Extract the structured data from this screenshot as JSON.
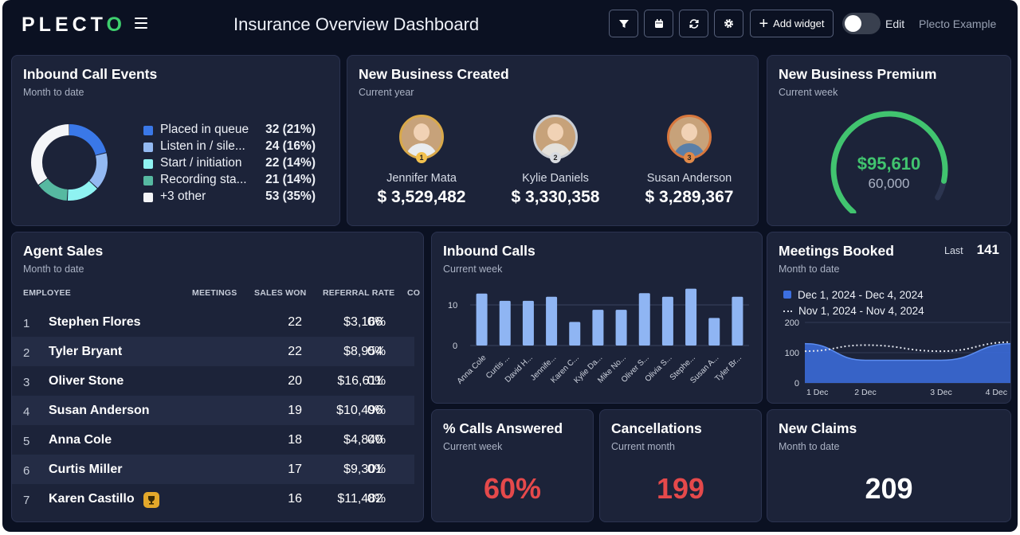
{
  "header": {
    "logo_main": "PLECT",
    "logo_accent": "O",
    "title": "Insurance Overview Dashboard",
    "add_widget_label": "Add widget",
    "edit_label": "Edit",
    "edit_mode": false,
    "account_label": "Plecto Example",
    "icons": [
      "filter-icon",
      "calendar-icon",
      "refresh-icon",
      "gear-icon",
      "plus-icon",
      "menu-icon"
    ]
  },
  "inbound_call_events": {
    "title": "Inbound Call Events",
    "subtitle": "Month to date",
    "legend": [
      {
        "label": "Placed in queue",
        "value": "32 (21%)",
        "pct": 21,
        "color": "#3a78e8"
      },
      {
        "label": "Listen in / sile...",
        "value": "24 (16%)",
        "pct": 16,
        "color": "#93b9f2"
      },
      {
        "label": "Start / initiation",
        "value": "22 (14%)",
        "pct": 14,
        "color": "#8ff3f2"
      },
      {
        "label": "Recording sta...",
        "value": "21 (14%)",
        "pct": 14,
        "color": "#56b9a1"
      },
      {
        "label": "+3 other",
        "value": "53 (35%)",
        "pct": 35,
        "color": "#f4f5f8"
      }
    ]
  },
  "new_business_created": {
    "title": "New Business Created",
    "subtitle": "Current year",
    "people": [
      {
        "rank": "1",
        "name": "Jennifer Mata",
        "amount": "$ 3,529,482",
        "ring": "#d9a94a",
        "shirt": "#e9ecef"
      },
      {
        "rank": "2",
        "name": "Kylie Daniels",
        "amount": "$ 3,330,358",
        "ring": "#c9cdd4",
        "shirt": "#e4e1db"
      },
      {
        "rank": "3",
        "name": "Susan Anderson",
        "amount": "$ 3,289,367",
        "ring": "#d8773d",
        "shirt": "#5a7fa8"
      }
    ]
  },
  "new_business_premium": {
    "title": "New Business Premium",
    "subtitle": "Current week",
    "value": "$95,610",
    "target": "60,000",
    "progress": 0.93,
    "color": "#41c46f"
  },
  "agent_sales": {
    "title": "Agent Sales",
    "subtitle": "Month to date",
    "columns": [
      "EMPLOYEE",
      "MEETINGS",
      "SALES WON",
      "REFERRAL RATE",
      "CO"
    ],
    "rows": [
      {
        "rank": "1",
        "name": "Stephen Flores",
        "meetings": "22",
        "sales": "$3,166",
        "referral": "0%"
      },
      {
        "rank": "2",
        "name": "Tyler Bryant",
        "meetings": "22",
        "sales": "$8,954",
        "referral": "0%"
      },
      {
        "rank": "3",
        "name": "Oliver Stone",
        "meetings": "20",
        "sales": "$16,611",
        "referral": "0%"
      },
      {
        "rank": "4",
        "name": "Susan Anderson",
        "meetings": "19",
        "sales": "$10,496",
        "referral": "0%"
      },
      {
        "rank": "5",
        "name": "Anna Cole",
        "meetings": "18",
        "sales": "$4,840",
        "referral": "0%"
      },
      {
        "rank": "6",
        "name": "Curtis Miller",
        "meetings": "17",
        "sales": "$9,301",
        "referral": "0%"
      },
      {
        "rank": "7",
        "name": "Karen Castillo",
        "meetings": "16",
        "sales": "$11,482",
        "referral": "0%"
      }
    ]
  },
  "inbound_calls": {
    "title": "Inbound Calls",
    "subtitle": "Current week"
  },
  "meetings_booked": {
    "title": "Meetings Booked",
    "subtitle": "Month to date",
    "last_label": "Last",
    "last_value": "141",
    "legend_current": "Dec 1, 2024 - Dec 4, 2024",
    "legend_previous": "Nov 1, 2024 - Nov 4, 2024"
  },
  "calls_answered": {
    "title": "% Calls Answered",
    "subtitle": "Current week",
    "value": "60%",
    "color": "#e5494b"
  },
  "cancellations": {
    "title": "Cancellations",
    "subtitle": "Current month",
    "value": "199",
    "color": "#e5494b"
  },
  "new_claims": {
    "title": "New Claims",
    "subtitle": "Month to date",
    "value": "209",
    "color": "#ffffff"
  },
  "chart_data": [
    {
      "type": "bar",
      "chart": "inbound_calls",
      "categories": [
        "Anna Cole",
        "Curtis ...",
        "David H...",
        "Jennife...",
        "Karen C...",
        "Kylie Da...",
        "Mike No...",
        "Oliver S...",
        "Olivia S...",
        "Stephe...",
        "Susan A...",
        "Tyler Br..."
      ],
      "values": [
        12.8,
        11,
        11,
        12,
        5.8,
        8.8,
        8.8,
        12.9,
        12,
        14,
        6.8,
        12
      ],
      "yticks": [
        "0",
        "10"
      ],
      "ylim": [
        0,
        15
      ],
      "color": "#8fb5f3"
    },
    {
      "type": "area",
      "chart": "meetings_booked",
      "x": [
        "1 Dec",
        "2 Dec",
        "3 Dec",
        "4 Dec"
      ],
      "series": [
        {
          "name": "Dec 1, 2024 - Dec 4, 2024",
          "values": [
            130,
            75,
            75,
            130
          ],
          "style": "area",
          "color": "#3c6fe0"
        },
        {
          "name": "Nov 1, 2024 - Nov 4, 2024",
          "values": [
            105,
            125,
            105,
            135
          ],
          "style": "dotted",
          "color": "#dfe3ec"
        }
      ],
      "yticks": [
        "0",
        "100",
        "200"
      ],
      "ylim": [
        0,
        200
      ]
    }
  ]
}
